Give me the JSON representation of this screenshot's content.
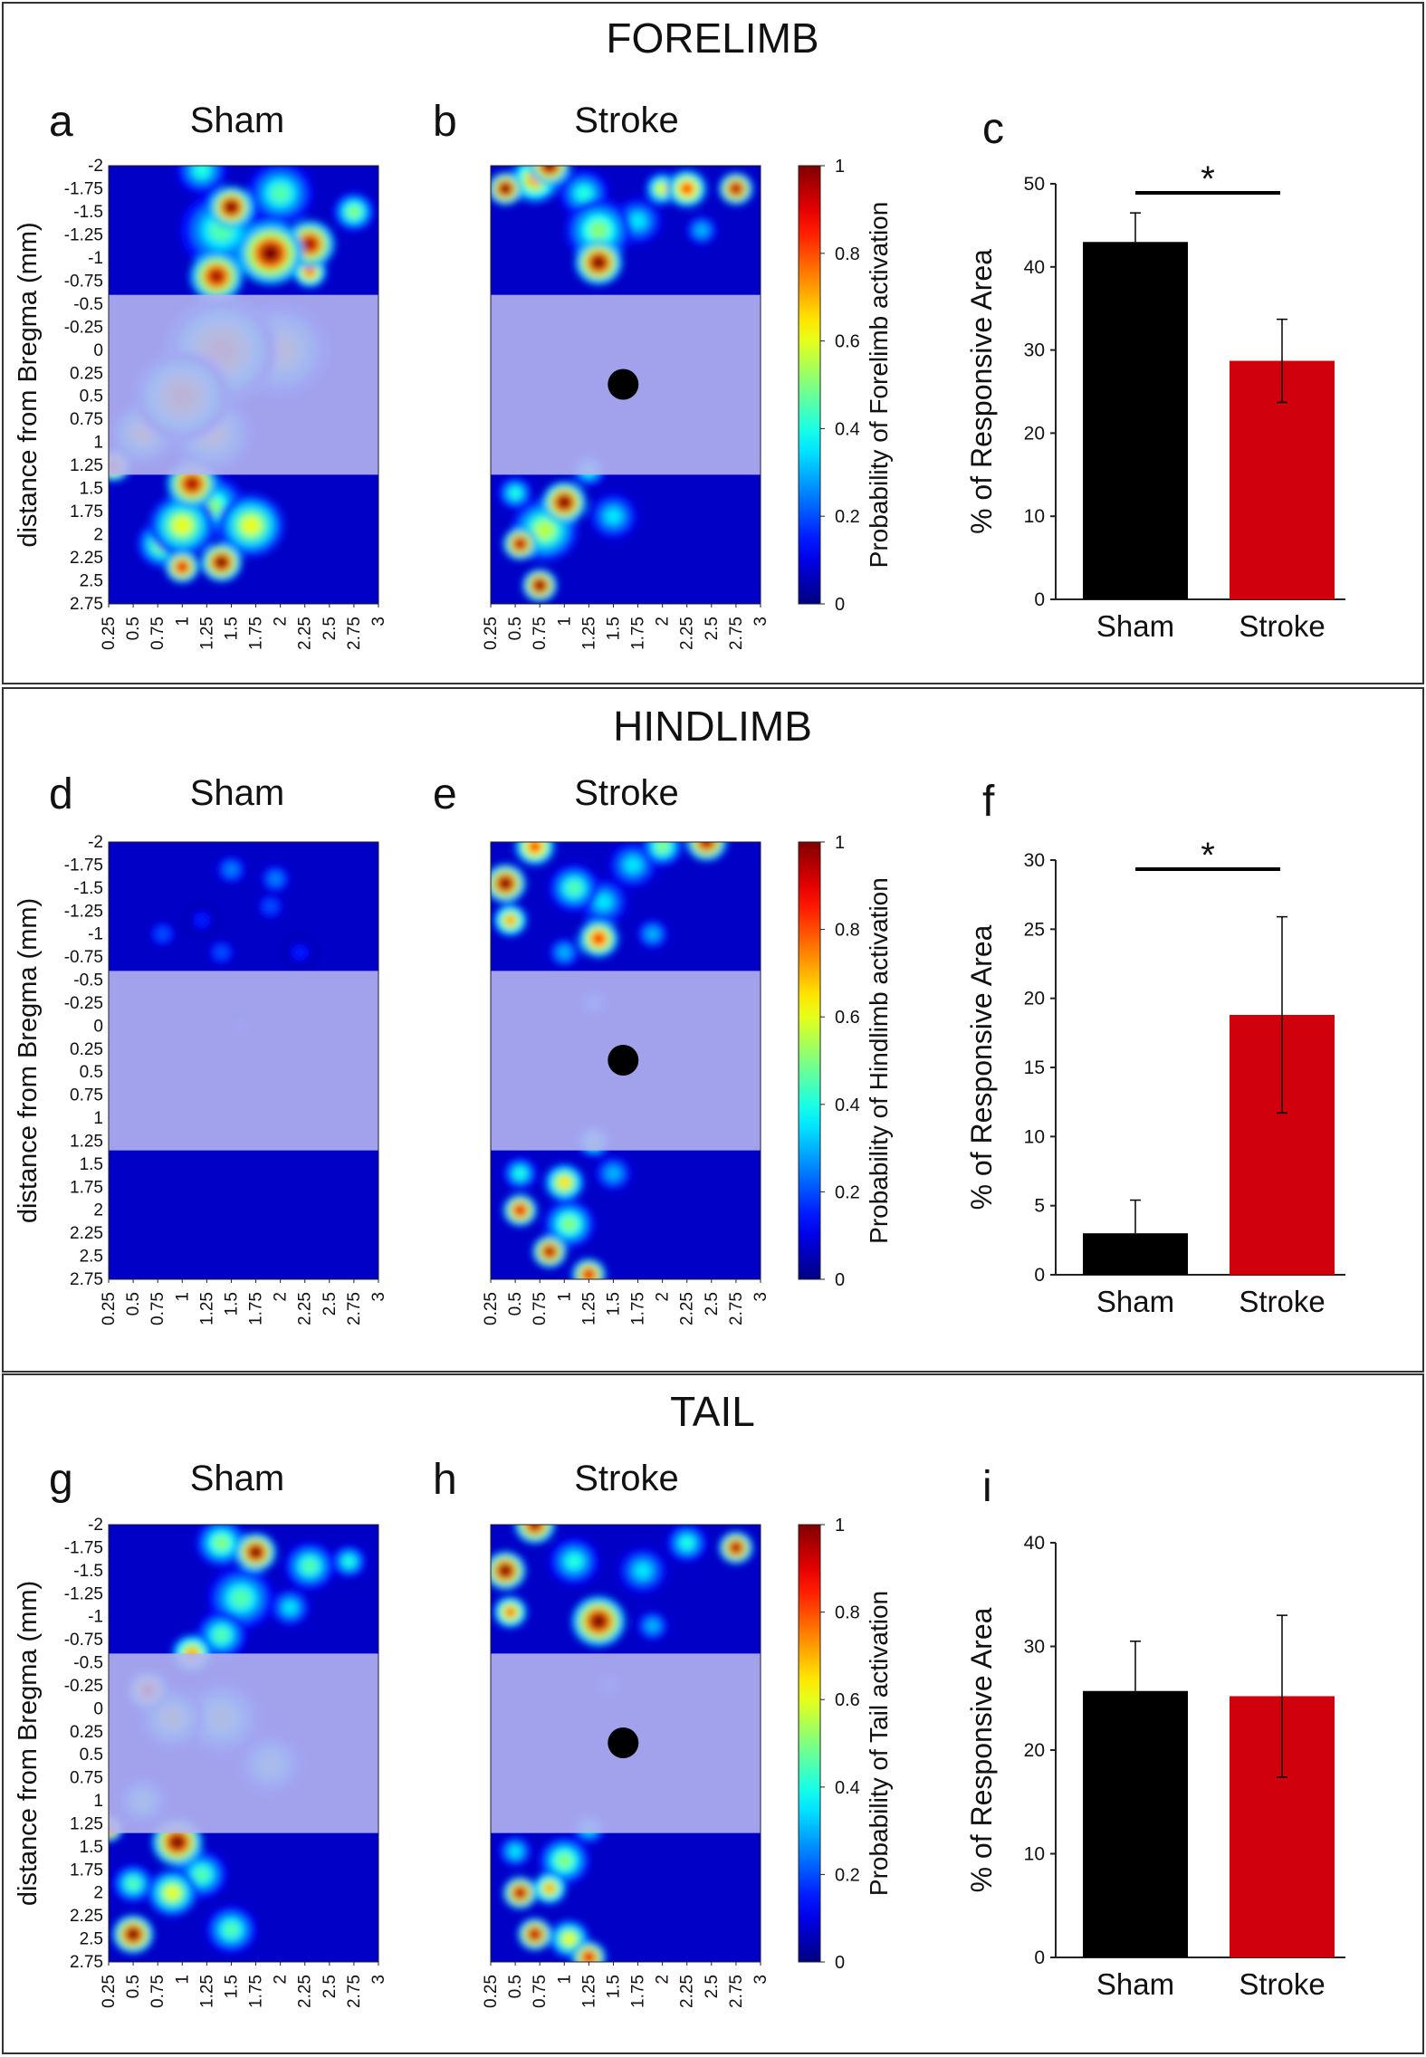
{
  "figure": {
    "heatmap_x_ticks": [
      "0.25",
      "0.5",
      "0.75",
      "1",
      "1.25",
      "1.5",
      "1.75",
      "2",
      "2.25",
      "2.5",
      "2.75",
      "3"
    ],
    "heatmap_y_ticks": [
      "-2",
      "-1.75",
      "-1.5",
      "-1.25",
      "-1",
      "-0.75",
      "-0.5",
      "-0.25",
      "0",
      "0.25",
      "0.5",
      "0.75",
      "1",
      "1.25",
      "1.5",
      "1.75",
      "2",
      "2.25",
      "2.5",
      "2.75"
    ],
    "y_axis_label": "distance from Bregma (mm)",
    "colorbar_ticks": [
      "0",
      "0.2",
      "0.4",
      "0.6",
      "0.8",
      "1"
    ],
    "colors": {
      "sham_bar": "#000000",
      "stroke_bar": "#d0000d",
      "heatmap_background": "#0000c8",
      "lesion_band": "#b4b4f0",
      "border": "#333333"
    }
  },
  "chart_data": [
    {
      "section": "FORELIMB",
      "panels": {
        "heatmap_sham": {
          "letter": "a",
          "title": "Sham",
          "type": "heatmap"
        },
        "heatmap_stroke": {
          "letter": "b",
          "title": "Stroke",
          "type": "heatmap"
        },
        "bar": {
          "letter": "c"
        }
      },
      "colorbar_label": "Probability of Forelimb activation",
      "sham_hotspots": [
        {
          "x": 1.5,
          "y": -1.55,
          "v": 1.0,
          "s": 0.13
        },
        {
          "x": 1.9,
          "y": -1.05,
          "v": 1.0,
          "s": 0.2
        },
        {
          "x": 1.35,
          "y": -0.8,
          "v": 0.95,
          "s": 0.16
        },
        {
          "x": 2.3,
          "y": -1.15,
          "v": 0.95,
          "s": 0.15
        },
        {
          "x": 2.3,
          "y": -0.85,
          "v": 0.75,
          "s": 0.1
        },
        {
          "x": 1.4,
          "y": -1.3,
          "v": 0.45,
          "s": 0.25
        },
        {
          "x": 2.0,
          "y": -1.7,
          "v": 0.45,
          "s": 0.2
        },
        {
          "x": 2.75,
          "y": -1.5,
          "v": 0.5,
          "s": 0.12
        },
        {
          "x": 1.2,
          "y": -1.95,
          "v": 0.4,
          "s": 0.15
        },
        {
          "x": 1.4,
          "y": 0.0,
          "v": 0.7,
          "s": 0.35
        },
        {
          "x": 1.0,
          "y": 0.5,
          "v": 0.7,
          "s": 0.3
        },
        {
          "x": 2.0,
          "y": 0.0,
          "v": 0.6,
          "s": 0.3
        },
        {
          "x": 0.6,
          "y": 0.9,
          "v": 0.6,
          "s": 0.2
        },
        {
          "x": 0.3,
          "y": 1.25,
          "v": 0.8,
          "s": 0.1
        },
        {
          "x": 1.3,
          "y": 0.9,
          "v": 0.6,
          "s": 0.25
        },
        {
          "x": 1.1,
          "y": 1.45,
          "v": 0.95,
          "s": 0.15
        },
        {
          "x": 1.0,
          "y": 2.35,
          "v": 0.9,
          "s": 0.1
        },
        {
          "x": 1.4,
          "y": 2.3,
          "v": 1.0,
          "s": 0.12
        },
        {
          "x": 1.0,
          "y": 1.9,
          "v": 0.6,
          "s": 0.2
        },
        {
          "x": 1.7,
          "y": 1.9,
          "v": 0.6,
          "s": 0.2
        },
        {
          "x": 0.8,
          "y": 2.1,
          "v": 0.55,
          "s": 0.15
        },
        {
          "x": 1.3,
          "y": 1.7,
          "v": 0.5,
          "s": 0.2
        }
      ],
      "stroke_hotspots": [
        {
          "x": 0.4,
          "y": -1.75,
          "v": 1.0,
          "s": 0.1
        },
        {
          "x": 0.85,
          "y": -2.0,
          "v": 1.0,
          "s": 0.12
        },
        {
          "x": 0.7,
          "y": -1.85,
          "v": 0.7,
          "s": 0.15
        },
        {
          "x": 2.25,
          "y": -1.75,
          "v": 0.8,
          "s": 0.12
        },
        {
          "x": 2.75,
          "y": -1.75,
          "v": 0.95,
          "s": 0.1
        },
        {
          "x": 2.0,
          "y": -1.75,
          "v": 0.6,
          "s": 0.1
        },
        {
          "x": 1.35,
          "y": -0.95,
          "v": 1.0,
          "s": 0.14
        },
        {
          "x": 1.35,
          "y": -1.3,
          "v": 0.5,
          "s": 0.2
        },
        {
          "x": 1.75,
          "y": -1.4,
          "v": 0.35,
          "s": 0.15
        },
        {
          "x": 2.4,
          "y": -1.3,
          "v": 0.3,
          "s": 0.1
        },
        {
          "x": 1.2,
          "y": -1.7,
          "v": 0.4,
          "s": 0.15
        },
        {
          "x": 1.25,
          "y": 1.3,
          "v": 0.4,
          "s": 0.1
        },
        {
          "x": 1.0,
          "y": 1.65,
          "v": 1.0,
          "s": 0.13
        },
        {
          "x": 0.55,
          "y": 2.1,
          "v": 0.95,
          "s": 0.1
        },
        {
          "x": 0.75,
          "y": 2.55,
          "v": 1.0,
          "s": 0.1
        },
        {
          "x": 0.5,
          "y": 1.55,
          "v": 0.4,
          "s": 0.1
        },
        {
          "x": 0.8,
          "y": 1.95,
          "v": 0.55,
          "s": 0.2
        },
        {
          "x": 1.5,
          "y": 1.8,
          "v": 0.35,
          "s": 0.15
        }
      ],
      "type": "bar",
      "categories": [
        "Sham",
        "Stroke"
      ],
      "values": [
        43,
        28.7
      ],
      "errors": [
        3.5,
        5.0
      ],
      "ylabel": "% of Responsive Area",
      "ylim": [
        0,
        50
      ],
      "yticks": [
        "0",
        "10",
        "20",
        "30",
        "40",
        "50"
      ],
      "significance": "*"
    },
    {
      "section": "HINDLIMB",
      "panels": {
        "heatmap_sham": {
          "letter": "d",
          "title": "Sham",
          "type": "heatmap"
        },
        "heatmap_stroke": {
          "letter": "e",
          "title": "Stroke",
          "type": "heatmap"
        },
        "bar": {
          "letter": "f"
        }
      },
      "colorbar_label": "Probability of Hindlimb activation",
      "sham_hotspots": [
        {
          "x": 1.5,
          "y": -1.7,
          "v": 0.25,
          "s": 0.1
        },
        {
          "x": 1.95,
          "y": -1.6,
          "v": 0.25,
          "s": 0.1
        },
        {
          "x": 1.9,
          "y": -1.3,
          "v": 0.2,
          "s": 0.1
        },
        {
          "x": 0.8,
          "y": -1.0,
          "v": 0.2,
          "s": 0.1
        },
        {
          "x": 1.4,
          "y": -0.8,
          "v": 0.2,
          "s": 0.1
        },
        {
          "x": 1.2,
          "y": -1.15,
          "v": 0.15,
          "s": 0.1
        },
        {
          "x": 2.2,
          "y": -0.8,
          "v": 0.15,
          "s": 0.1
        },
        {
          "x": 1.6,
          "y": 0.0,
          "v": 0.15,
          "s": 0.08
        }
      ],
      "stroke_hotspots": [
        {
          "x": 0.4,
          "y": -1.55,
          "v": 1.0,
          "s": 0.12
        },
        {
          "x": 0.7,
          "y": -1.95,
          "v": 0.8,
          "s": 0.12
        },
        {
          "x": 0.45,
          "y": -1.15,
          "v": 0.7,
          "s": 0.1
        },
        {
          "x": 2.45,
          "y": -2.0,
          "v": 0.95,
          "s": 0.12
        },
        {
          "x": 2.0,
          "y": -1.95,
          "v": 0.5,
          "s": 0.12
        },
        {
          "x": 1.35,
          "y": -0.95,
          "v": 0.85,
          "s": 0.12
        },
        {
          "x": 1.1,
          "y": -1.5,
          "v": 0.45,
          "s": 0.15
        },
        {
          "x": 1.4,
          "y": -1.35,
          "v": 0.35,
          "s": 0.15
        },
        {
          "x": 1.7,
          "y": -1.75,
          "v": 0.35,
          "s": 0.15
        },
        {
          "x": 1.9,
          "y": -1.0,
          "v": 0.3,
          "s": 0.1
        },
        {
          "x": 1.0,
          "y": -0.8,
          "v": 0.3,
          "s": 0.1
        },
        {
          "x": 1.3,
          "y": -0.25,
          "v": 0.25,
          "s": 0.1
        },
        {
          "x": 0.55,
          "y": 2.0,
          "v": 0.9,
          "s": 0.1
        },
        {
          "x": 0.85,
          "y": 2.45,
          "v": 0.95,
          "s": 0.1
        },
        {
          "x": 1.25,
          "y": 2.7,
          "v": 0.9,
          "s": 0.1
        },
        {
          "x": 1.0,
          "y": 1.7,
          "v": 0.65,
          "s": 0.12
        },
        {
          "x": 1.05,
          "y": 2.15,
          "v": 0.5,
          "s": 0.15
        },
        {
          "x": 1.3,
          "y": 1.25,
          "v": 0.45,
          "s": 0.1
        },
        {
          "x": 0.55,
          "y": 1.6,
          "v": 0.4,
          "s": 0.1
        },
        {
          "x": 1.5,
          "y": 1.6,
          "v": 0.3,
          "s": 0.12
        }
      ],
      "type": "bar",
      "categories": [
        "Sham",
        "Stroke"
      ],
      "values": [
        3.0,
        18.8
      ],
      "errors": [
        2.4,
        7.1
      ],
      "ylabel": "% of Responsive Area",
      "ylim": [
        0,
        30
      ],
      "yticks": [
        "0",
        "5",
        "10",
        "15",
        "20",
        "25",
        "30"
      ],
      "significance": "*"
    },
    {
      "section": "TAIL",
      "panels": {
        "heatmap_sham": {
          "letter": "g",
          "title": "Sham",
          "type": "heatmap"
        },
        "heatmap_stroke": {
          "letter": "h",
          "title": "Stroke",
          "type": "heatmap"
        },
        "bar": {
          "letter": "i"
        }
      },
      "colorbar_label": "Probability of Tail activation",
      "sham_hotspots": [
        {
          "x": 1.75,
          "y": -1.7,
          "v": 1.0,
          "s": 0.12
        },
        {
          "x": 1.4,
          "y": -1.8,
          "v": 0.5,
          "s": 0.15
        },
        {
          "x": 2.3,
          "y": -1.55,
          "v": 0.45,
          "s": 0.15
        },
        {
          "x": 2.7,
          "y": -1.6,
          "v": 0.4,
          "s": 0.1
        },
        {
          "x": 1.6,
          "y": -1.2,
          "v": 0.45,
          "s": 0.2
        },
        {
          "x": 2.1,
          "y": -1.1,
          "v": 0.35,
          "s": 0.12
        },
        {
          "x": 1.4,
          "y": -0.8,
          "v": 0.45,
          "s": 0.15
        },
        {
          "x": 1.1,
          "y": -0.6,
          "v": 0.7,
          "s": 0.12
        },
        {
          "x": 0.65,
          "y": -0.2,
          "v": 0.85,
          "s": 0.12
        },
        {
          "x": 0.9,
          "y": 0.1,
          "v": 0.55,
          "s": 0.2
        },
        {
          "x": 1.4,
          "y": 0.1,
          "v": 0.5,
          "s": 0.25
        },
        {
          "x": 1.9,
          "y": 0.6,
          "v": 0.45,
          "s": 0.2
        },
        {
          "x": 0.6,
          "y": 1.0,
          "v": 0.45,
          "s": 0.15
        },
        {
          "x": 0.25,
          "y": 1.3,
          "v": 0.85,
          "s": 0.08
        },
        {
          "x": 0.95,
          "y": 1.45,
          "v": 1.0,
          "s": 0.15
        },
        {
          "x": 0.5,
          "y": 2.45,
          "v": 1.0,
          "s": 0.12
        },
        {
          "x": 0.9,
          "y": 2.0,
          "v": 0.6,
          "s": 0.15
        },
        {
          "x": 1.5,
          "y": 2.4,
          "v": 0.45,
          "s": 0.15
        },
        {
          "x": 1.2,
          "y": 1.8,
          "v": 0.45,
          "s": 0.15
        },
        {
          "x": 0.5,
          "y": 1.9,
          "v": 0.45,
          "s": 0.12
        }
      ],
      "stroke_hotspots": [
        {
          "x": 0.4,
          "y": -1.5,
          "v": 1.0,
          "s": 0.12
        },
        {
          "x": 0.7,
          "y": -2.0,
          "v": 0.95,
          "s": 0.12
        },
        {
          "x": 0.45,
          "y": -1.05,
          "v": 0.75,
          "s": 0.1
        },
        {
          "x": 2.75,
          "y": -1.75,
          "v": 0.95,
          "s": 0.1
        },
        {
          "x": 2.25,
          "y": -1.8,
          "v": 0.4,
          "s": 0.12
        },
        {
          "x": 1.35,
          "y": -0.95,
          "v": 1.0,
          "s": 0.16
        },
        {
          "x": 1.1,
          "y": -1.6,
          "v": 0.4,
          "s": 0.15
        },
        {
          "x": 1.8,
          "y": -1.5,
          "v": 0.35,
          "s": 0.15
        },
        {
          "x": 1.9,
          "y": -0.9,
          "v": 0.3,
          "s": 0.1
        },
        {
          "x": 1.45,
          "y": -0.25,
          "v": 0.2,
          "s": 0.1
        },
        {
          "x": 0.55,
          "y": 2.0,
          "v": 0.95,
          "s": 0.1
        },
        {
          "x": 0.85,
          "y": 1.95,
          "v": 0.7,
          "s": 0.1
        },
        {
          "x": 0.7,
          "y": 2.45,
          "v": 0.95,
          "s": 0.1
        },
        {
          "x": 1.25,
          "y": 2.7,
          "v": 0.9,
          "s": 0.1
        },
        {
          "x": 1.05,
          "y": 2.5,
          "v": 0.6,
          "s": 0.12
        },
        {
          "x": 1.25,
          "y": 1.3,
          "v": 0.35,
          "s": 0.1
        },
        {
          "x": 1.0,
          "y": 1.65,
          "v": 0.5,
          "s": 0.15
        },
        {
          "x": 0.5,
          "y": 1.55,
          "v": 0.35,
          "s": 0.1
        }
      ],
      "type": "bar",
      "categories": [
        "Sham",
        "Stroke"
      ],
      "values": [
        25.7,
        25.2
      ],
      "errors": [
        4.8,
        7.8
      ],
      "ylabel": "% of Responsive Area",
      "ylim": [
        0,
        40
      ],
      "yticks": [
        "0",
        "10",
        "20",
        "30",
        "40"
      ],
      "significance": ""
    }
  ]
}
